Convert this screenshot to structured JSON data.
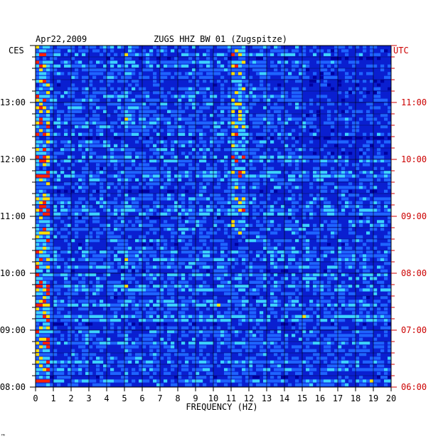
{
  "chart_data": {
    "type": "heatmap",
    "date": "Apr22,2009",
    "title": "ZUGS HHZ BW 01 (Zugspitze)",
    "left_timezone": "CES",
    "right_timezone": "UTC",
    "xlabel": "FREQUENCY (HZ)",
    "xlim": [
      0,
      20
    ],
    "x_ticks": [
      "0",
      "1",
      "2",
      "3",
      "4",
      "5",
      "6",
      "7",
      "8",
      "9",
      "10",
      "11",
      "12",
      "13",
      "14",
      "15",
      "16",
      "17",
      "18",
      "19",
      "20"
    ],
    "left_ticks": [
      "13:00",
      "12:00",
      "11:00",
      "10:00",
      "09:00",
      "08:00"
    ],
    "right_ticks": [
      "11:00",
      "10:00",
      "09:00",
      "08:00",
      "07:00",
      "06:00"
    ],
    "time_range_ces": [
      "08:00",
      "14:00"
    ],
    "time_range_utc": [
      "06:00",
      "12:00"
    ],
    "colors": {
      "background": "#0a1fd0",
      "low": "#0000a0",
      "mid": "#1e64ff",
      "high": "#3cd2ff",
      "peak": "#ffe000",
      "max": "#ff2000",
      "axis_text": "#000000",
      "utc_text": "#cc0000"
    },
    "footnote": "™"
  }
}
